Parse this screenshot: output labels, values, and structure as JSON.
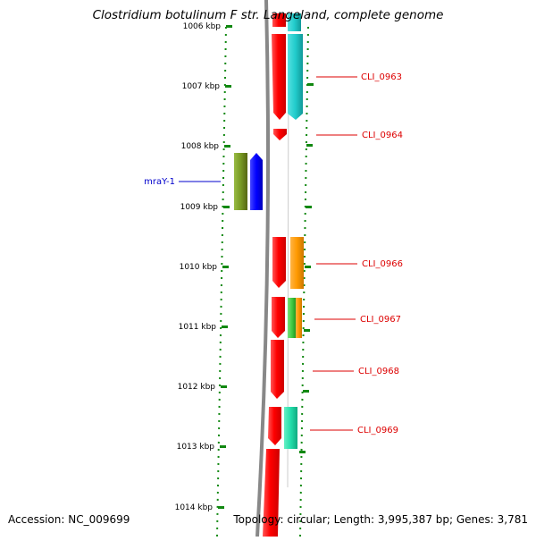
{
  "title": "Clostridium botulinum F str. Langeland, complete genome",
  "footer": {
    "accession": "Accession: NC_009699",
    "summary": "Topology: circular; Length: 3,995,387 bp; Genes: 3,781"
  },
  "ruler": {
    "unit": "kbp",
    "ticks": [
      1006,
      1007,
      1008,
      1009,
      1010,
      1011,
      1012,
      1013,
      1014
    ]
  },
  "genes": [
    {
      "label": "CLI_0963",
      "color": "#dd0000",
      "side": "right"
    },
    {
      "label": "CLI_0964",
      "color": "#dd0000",
      "side": "right"
    },
    {
      "label": "mraY-1",
      "color": "#0000cc",
      "side": "left"
    },
    {
      "label": "CLI_0966",
      "color": "#dd0000",
      "side": "right"
    },
    {
      "label": "CLI_0967",
      "color": "#dd0000",
      "side": "right"
    },
    {
      "label": "CLI_0968",
      "color": "#dd0000",
      "side": "right"
    },
    {
      "label": "CLI_0969",
      "color": "#dd0000",
      "side": "right"
    }
  ],
  "colors": {
    "forward_cds": "#ff0000",
    "reverse_cds": "#0000ff",
    "cog_cyan": "#22cccc",
    "cog_orange": "#ff9900",
    "cog_green": "#44cc44",
    "cog_olive": "#779922",
    "cog_teal": "#22ddaa",
    "ruler_green": "#118811",
    "backbone": "#888888"
  }
}
